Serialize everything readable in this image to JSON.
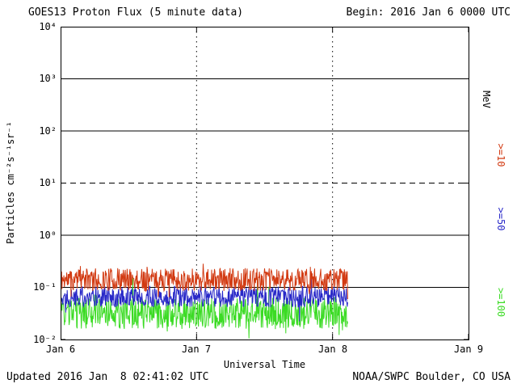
{
  "header": {
    "title": "GOES13 Proton Flux (5 minute data)",
    "begin_label": "Begin: 2016 Jan 6 0000 UTC"
  },
  "footer": {
    "updated": "Updated 2016 Jan  8 02:41:02 UTC",
    "source": "NOAA/SWPC Boulder, CO USA"
  },
  "chart_data": {
    "type": "line",
    "title": "GOES13 Proton Flux (5 minute data)",
    "xlabel": "Universal Time",
    "ylabel": "Particles cm⁻²s⁻¹sr⁻¹",
    "units_label": "MeV",
    "x_ticks": [
      "Jan 6",
      "Jan 7",
      "Jan 8",
      "Jan 9"
    ],
    "x_range_days": 3,
    "y_log_range": [
      -2,
      4
    ],
    "y_ticks": [
      "10⁴",
      "10³",
      "10²",
      "10¹",
      "10⁰",
      "10⁻¹",
      "10⁻²"
    ],
    "y_ticks_log10": [
      4,
      3,
      2,
      1,
      0,
      -1,
      -2
    ],
    "grid": {
      "solid_log10": [
        3,
        2,
        0,
        -1
      ],
      "dashed_log10": [
        1
      ],
      "day_lines": [
        1,
        2
      ]
    },
    "begin_utc": "2016 Jan 6 0000 UTC",
    "cadence_minutes": 5,
    "data_end_day_offset": 2.11,
    "series": [
      {
        "label": ">=10",
        "name": ">=10 MeV",
        "color": "#d23a12",
        "log10_mean": -0.85,
        "log10_amp": 0.22,
        "approx_flux_mean": 0.14,
        "approx_flux_range": [
          0.07,
          0.4
        ],
        "seed": 11
      },
      {
        "label": ">=50",
        "name": ">=50 MeV",
        "color": "#2828c8",
        "log10_mean": -1.18,
        "log10_amp": 0.2,
        "approx_flux_mean": 0.066,
        "approx_flux_range": [
          0.03,
          0.15
        ],
        "seed": 22
      },
      {
        "label": ">=100",
        "name": ">=100 MeV",
        "color": "#3bdb24",
        "log10_mean": -1.5,
        "log10_amp": 0.3,
        "approx_flux_mean": 0.032,
        "approx_flux_range": [
          0.01,
          0.07
        ],
        "seed": 33
      }
    ]
  }
}
